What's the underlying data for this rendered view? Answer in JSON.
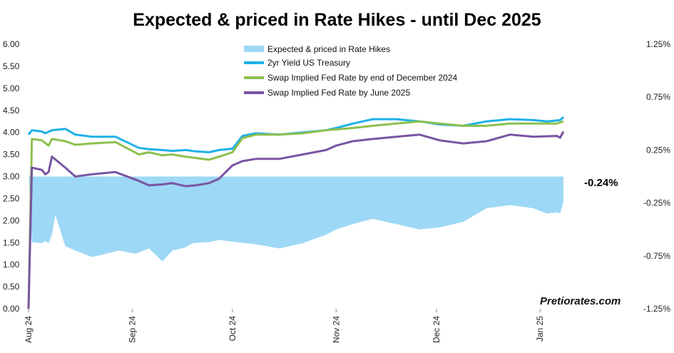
{
  "chart_data": {
    "type": "line",
    "title": "Expected & priced in Rate Hikes - until Dec 2025",
    "colors": {
      "area": "#9dd8f6",
      "yield_2yr": "#1fb0e6",
      "swap_dec24": "#8dbf4f",
      "swap_jun25": "#7a55a2"
    },
    "y_left": {
      "min": 0,
      "max": 6,
      "ticks": [
        "0.00",
        "0.50",
        "1.00",
        "1.50",
        "2.00",
        "2.50",
        "3.00",
        "3.50",
        "4.00",
        "4.50",
        "5.00",
        "5.50",
        "6.00"
      ]
    },
    "y_right": {
      "min": -1.25,
      "max": 1.25,
      "ticks": [
        "-1.25%",
        "-0.75%",
        "-0.25%",
        "0.25%",
        "0.75%",
        "1.25%"
      ]
    },
    "x_ticks": [
      "Aug 24",
      "Sep 24",
      "Oct 24",
      "Nov 24",
      "Dec 24",
      "Jan 25"
    ],
    "x_tick_dates": [
      "2024-08-01",
      "2024-09-01",
      "2024-10-01",
      "2024-11-01",
      "2024-12-01",
      "2025-01-01"
    ],
    "x_range": [
      "2024-08-01",
      "2025-01-08"
    ],
    "legend": {
      "placement": "top-center",
      "entries": [
        "Expected & priced in Rate Hikes",
        "2yr Yield US Treasury",
        "Swap Implied Fed Rate by end of December 2024",
        "Swap Implied Fed Rate by June 2025"
      ]
    },
    "series": [
      {
        "name": "Expected & priced in Rate Hikes",
        "axis": "right",
        "kind": "area",
        "dates": [
          "2024-08-01",
          "2024-08-02",
          "2024-08-05",
          "2024-08-06",
          "2024-08-07",
          "2024-08-08",
          "2024-08-09",
          "2024-08-12",
          "2024-08-15",
          "2024-08-20",
          "2024-08-23",
          "2024-08-28",
          "2024-09-02",
          "2024-09-06",
          "2024-09-10",
          "2024-09-11",
          "2024-09-13",
          "2024-09-17",
          "2024-09-19",
          "2024-09-24",
          "2024-09-27",
          "2024-10-02",
          "2024-10-08",
          "2024-10-15",
          "2024-10-22",
          "2024-10-29",
          "2024-11-01",
          "2024-11-06",
          "2024-11-12",
          "2024-11-19",
          "2024-11-26",
          "2024-12-02",
          "2024-12-09",
          "2024-12-16",
          "2024-12-23",
          "2024-12-30",
          "2025-01-03",
          "2025-01-06",
          "2025-01-07",
          "2025-01-08"
        ],
        "values": [
          0.05,
          -0.62,
          -0.63,
          -0.61,
          -0.63,
          -0.55,
          -0.36,
          -0.66,
          -0.7,
          -0.76,
          -0.74,
          -0.7,
          -0.73,
          -0.68,
          -0.8,
          -0.77,
          -0.7,
          -0.67,
          -0.63,
          -0.62,
          -0.6,
          -0.62,
          -0.64,
          -0.68,
          -0.63,
          -0.55,
          -0.5,
          -0.45,
          -0.4,
          -0.45,
          -0.5,
          -0.48,
          -0.43,
          -0.3,
          -0.27,
          -0.3,
          -0.35,
          -0.34,
          -0.35,
          -0.24
        ]
      },
      {
        "name": "2yr Yield US Treasury",
        "axis": "left",
        "dates": [
          "2024-08-01",
          "2024-08-02",
          "2024-08-05",
          "2024-08-06",
          "2024-08-08",
          "2024-08-12",
          "2024-08-15",
          "2024-08-20",
          "2024-08-27",
          "2024-09-03",
          "2024-09-06",
          "2024-09-10",
          "2024-09-13",
          "2024-09-17",
          "2024-09-20",
          "2024-09-24",
          "2024-09-27",
          "2024-10-01",
          "2024-10-04",
          "2024-10-08",
          "2024-10-15",
          "2024-10-22",
          "2024-10-29",
          "2024-11-01",
          "2024-11-06",
          "2024-11-12",
          "2024-11-19",
          "2024-11-26",
          "2024-12-02",
          "2024-12-09",
          "2024-12-16",
          "2024-12-23",
          "2024-12-30",
          "2025-01-03",
          "2025-01-06",
          "2025-01-07",
          "2025-01-08"
        ],
        "values": [
          3.95,
          4.05,
          4.02,
          3.98,
          4.05,
          4.08,
          3.95,
          3.9,
          3.9,
          3.65,
          3.62,
          3.6,
          3.58,
          3.6,
          3.57,
          3.55,
          3.6,
          3.63,
          3.92,
          3.98,
          3.95,
          4.0,
          4.05,
          4.1,
          4.2,
          4.3,
          4.3,
          4.25,
          4.18,
          4.15,
          4.25,
          4.3,
          4.28,
          4.25,
          4.27,
          4.28,
          4.35
        ]
      },
      {
        "name": "Swap Implied Fed Rate by end of December 2024",
        "axis": "left",
        "dates": [
          "2024-08-01",
          "2024-08-02",
          "2024-08-05",
          "2024-08-07",
          "2024-08-08",
          "2024-08-12",
          "2024-08-15",
          "2024-08-20",
          "2024-08-27",
          "2024-09-03",
          "2024-09-06",
          "2024-09-10",
          "2024-09-13",
          "2024-09-17",
          "2024-09-20",
          "2024-09-24",
          "2024-09-27",
          "2024-10-01",
          "2024-10-04",
          "2024-10-08",
          "2024-10-15",
          "2024-10-22",
          "2024-10-29",
          "2024-11-06",
          "2024-11-12",
          "2024-11-19",
          "2024-11-26",
          "2024-12-02",
          "2024-12-09",
          "2024-12-16",
          "2024-12-23",
          "2024-12-30",
          "2025-01-06",
          "2025-01-08"
        ],
        "values": [
          0.0,
          3.85,
          3.82,
          3.7,
          3.85,
          3.8,
          3.72,
          3.75,
          3.78,
          3.5,
          3.55,
          3.48,
          3.5,
          3.45,
          3.42,
          3.38,
          3.45,
          3.55,
          3.87,
          3.95,
          3.95,
          3.98,
          4.05,
          4.1,
          4.15,
          4.2,
          4.25,
          4.2,
          4.15,
          4.15,
          4.2,
          4.2,
          4.2,
          4.25
        ]
      },
      {
        "name": "Swap Implied Fed Rate by June 2025",
        "axis": "left",
        "dates": [
          "2024-08-01",
          "2024-08-02",
          "2024-08-05",
          "2024-08-06",
          "2024-08-07",
          "2024-08-08",
          "2024-08-12",
          "2024-08-15",
          "2024-08-20",
          "2024-08-27",
          "2024-09-03",
          "2024-09-06",
          "2024-09-10",
          "2024-09-13",
          "2024-09-17",
          "2024-09-20",
          "2024-09-24",
          "2024-09-27",
          "2024-10-01",
          "2024-10-04",
          "2024-10-08",
          "2024-10-15",
          "2024-10-22",
          "2024-10-29",
          "2024-11-01",
          "2024-11-06",
          "2024-11-12",
          "2024-11-19",
          "2024-11-26",
          "2024-12-02",
          "2024-12-09",
          "2024-12-16",
          "2024-12-23",
          "2024-12-30",
          "2025-01-06",
          "2025-01-07",
          "2025-01-08"
        ],
        "values": [
          0.0,
          3.2,
          3.15,
          3.05,
          3.1,
          3.45,
          3.2,
          3.0,
          3.05,
          3.1,
          2.9,
          2.8,
          2.82,
          2.85,
          2.78,
          2.8,
          2.85,
          2.95,
          3.25,
          3.35,
          3.4,
          3.4,
          3.5,
          3.6,
          3.7,
          3.8,
          3.85,
          3.9,
          3.95,
          3.82,
          3.75,
          3.8,
          3.95,
          3.9,
          3.92,
          3.88,
          4.02
        ]
      }
    ],
    "annotations": [
      {
        "text": "-0.24%",
        "series": "Expected & priced in Rate Hikes"
      }
    ]
  },
  "watermark": "Pretiorates.com"
}
